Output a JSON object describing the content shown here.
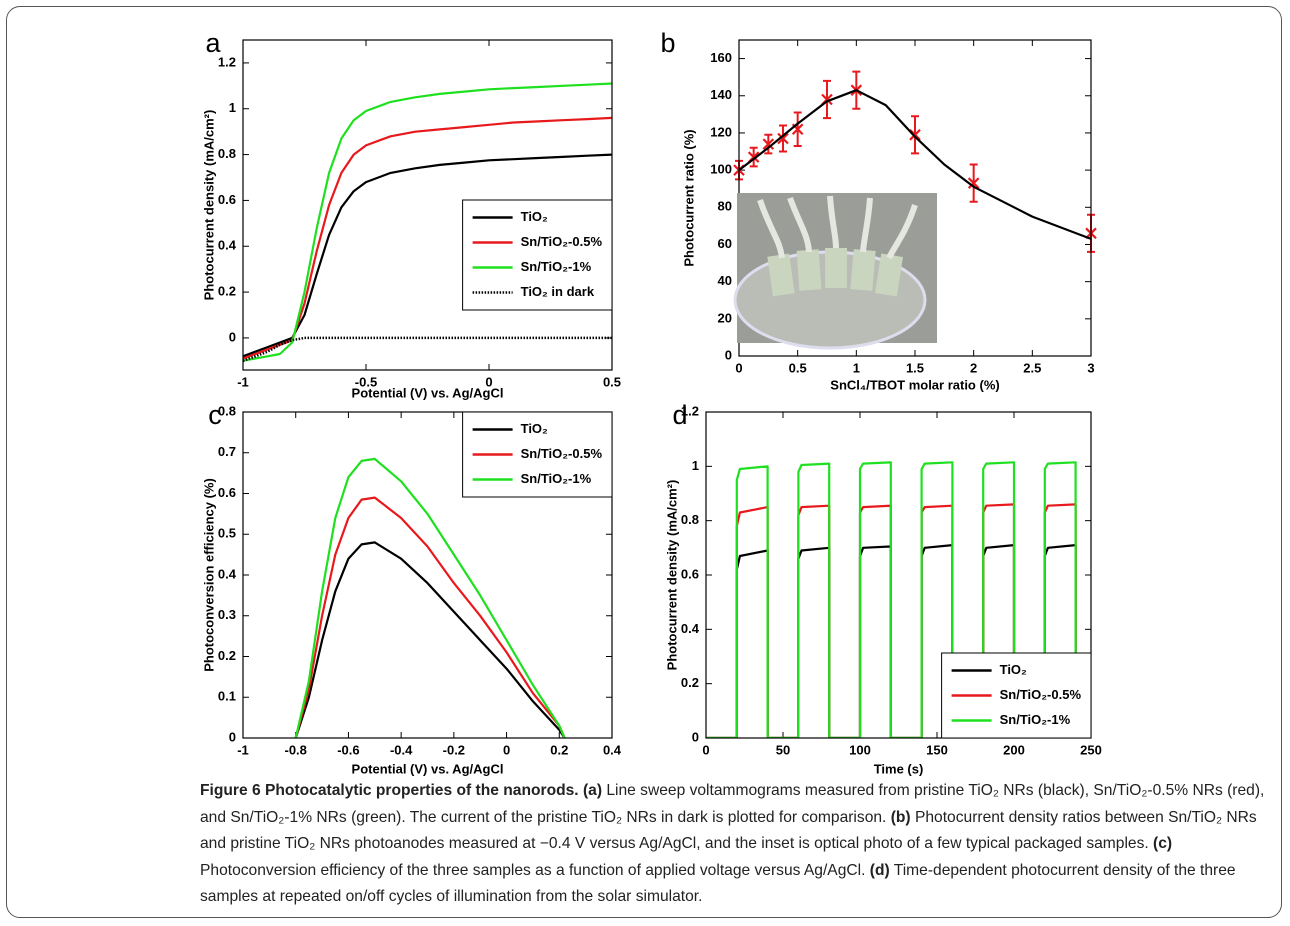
{
  "chart_data": [
    {
      "type": "line",
      "panel": "a",
      "xlabel": "Potential (V) vs. Ag/AgCl",
      "ylabel": "Photocurrent density (mA/cm²)",
      "xlim": [
        -1,
        0.5
      ],
      "xticks": [
        -1,
        -0.5,
        0,
        0.5
      ],
      "ylim": [
        -0.14,
        1.3
      ],
      "yticks": [
        0,
        0.2,
        0.4,
        0.6,
        0.8,
        1,
        1.2
      ],
      "legend": "lower right",
      "x": [
        -1,
        -0.95,
        -0.9,
        -0.85,
        -0.8,
        -0.75,
        -0.7,
        -0.65,
        -0.6,
        -0.55,
        -0.5,
        -0.4,
        -0.3,
        -0.2,
        -0.1,
        0,
        0.1,
        0.2,
        0.3,
        0.4,
        0.5
      ],
      "series": [
        {
          "name": "TiO₂",
          "color": "#000000",
          "values": [
            -0.08,
            -0.06,
            -0.04,
            -0.02,
            0.0,
            0.1,
            0.28,
            0.45,
            0.57,
            0.64,
            0.68,
            0.72,
            0.74,
            0.755,
            0.765,
            0.775,
            0.78,
            0.785,
            0.79,
            0.795,
            0.8
          ]
        },
        {
          "name": "Sn/TiO₂-0.5%",
          "color": "#e8191c",
          "values": [
            -0.09,
            -0.07,
            -0.05,
            -0.03,
            -0.01,
            0.15,
            0.38,
            0.58,
            0.72,
            0.8,
            0.84,
            0.88,
            0.9,
            0.91,
            0.92,
            0.93,
            0.94,
            0.945,
            0.95,
            0.955,
            0.96
          ]
        },
        {
          "name": "Sn/TiO₂-1%",
          "color": "#1ee01e",
          "values": [
            -0.1,
            -0.09,
            -0.08,
            -0.07,
            -0.02,
            0.2,
            0.48,
            0.72,
            0.87,
            0.95,
            0.99,
            1.03,
            1.05,
            1.065,
            1.075,
            1.085,
            1.09,
            1.095,
            1.1,
            1.105,
            1.11
          ]
        },
        {
          "name": "TiO₂ in dark",
          "color": "#000000",
          "style": "dotted",
          "values": [
            -0.1,
            -0.08,
            -0.06,
            -0.03,
            -0.01,
            0,
            0,
            0,
            0,
            0,
            0,
            0,
            0,
            0,
            0,
            0,
            0,
            0,
            0,
            0,
            0
          ]
        }
      ]
    },
    {
      "type": "line",
      "panel": "b",
      "xlabel": "SnCl₄/TBOT molar ratio (%)",
      "ylabel": "Photocurrent ratio (%)",
      "xlim": [
        0,
        3
      ],
      "xticks": [
        0,
        0.5,
        1,
        1.5,
        2,
        2.5,
        3
      ],
      "ylim": [
        0,
        170
      ],
      "yticks": [
        0,
        20,
        40,
        60,
        80,
        100,
        120,
        140,
        160
      ],
      "series": [
        {
          "color": "#e8191c",
          "marker": "x",
          "line": false,
          "x": [
            0,
            0.125,
            0.25,
            0.375,
            0.5,
            0.75,
            1,
            1.5,
            2,
            3
          ],
          "values": [
            100,
            107,
            114,
            117,
            122,
            138,
            143,
            119,
            93,
            66
          ],
          "error": [
            5,
            5,
            5,
            7,
            9,
            10,
            10,
            10,
            10,
            10
          ]
        },
        {
          "color": "#000000",
          "x": [
            0,
            0.25,
            0.5,
            0.75,
            1,
            1.25,
            1.5,
            1.75,
            2,
            2.5,
            3
          ],
          "values": [
            100,
            112,
            125,
            137,
            143,
            135,
            118,
            103,
            91,
            75,
            63
          ]
        }
      ]
    },
    {
      "type": "line",
      "panel": "c",
      "xlabel": "Potential (V) vs. Ag/AgCl",
      "ylabel": "Photoconversion efficiency (%)",
      "xlim": [
        -1,
        0.4
      ],
      "xticks": [
        -1,
        -0.8,
        -0.6,
        -0.4,
        -0.2,
        0,
        0.2,
        0.4
      ],
      "ylim": [
        0,
        0.8
      ],
      "yticks": [
        0,
        0.1,
        0.2,
        0.3,
        0.4,
        0.5,
        0.6,
        0.7,
        0.8
      ],
      "legend": "upper right",
      "x": [
        -0.8,
        -0.75,
        -0.7,
        -0.65,
        -0.6,
        -0.55,
        -0.5,
        -0.4,
        -0.3,
        -0.2,
        -0.1,
        0,
        0.1,
        0.2,
        0.22
      ],
      "series": [
        {
          "name": "TiO₂",
          "color": "#000000",
          "values": [
            0,
            0.1,
            0.24,
            0.36,
            0.44,
            0.475,
            0.48,
            0.44,
            0.38,
            0.31,
            0.24,
            0.17,
            0.09,
            0.02,
            0
          ]
        },
        {
          "name": "Sn/TiO₂-0.5%",
          "color": "#e8191c",
          "values": [
            0,
            0.12,
            0.3,
            0.45,
            0.54,
            0.585,
            0.59,
            0.54,
            0.47,
            0.38,
            0.3,
            0.21,
            0.11,
            0.03,
            0
          ]
        },
        {
          "name": "Sn/TiO₂-1%",
          "color": "#1ee01e",
          "values": [
            0,
            0.14,
            0.36,
            0.54,
            0.64,
            0.68,
            0.685,
            0.63,
            0.55,
            0.45,
            0.35,
            0.24,
            0.13,
            0.03,
            0
          ]
        }
      ]
    },
    {
      "type": "line",
      "panel": "d",
      "xlabel": "Time (s)",
      "ylabel": "Photocurrent density (mA/cm²)",
      "xlim": [
        0,
        250
      ],
      "xticks": [
        0,
        50,
        100,
        150,
        200,
        250
      ],
      "ylim": [
        0,
        1.2
      ],
      "yticks": [
        0,
        0.2,
        0.4,
        0.6,
        0.8,
        1,
        1.2
      ],
      "legend": "lower right",
      "x": [
        0,
        20,
        20,
        22,
        40,
        40,
        60,
        60,
        62,
        80,
        80,
        100,
        100,
        102,
        120,
        120,
        140,
        140,
        142,
        160,
        160,
        180,
        180,
        182,
        200,
        200,
        220,
        220,
        222,
        240,
        240,
        250
      ],
      "series": [
        {
          "name": "TiO₂",
          "color": "#000000",
          "values": [
            0,
            0,
            0.62,
            0.67,
            0.69,
            0,
            0,
            0.66,
            0.69,
            0.7,
            0,
            0,
            0.67,
            0.7,
            0.705,
            0,
            0,
            0.67,
            0.7,
            0.71,
            0,
            0,
            0.67,
            0.7,
            0.71,
            0,
            0,
            0.67,
            0.7,
            0.71,
            0,
            0
          ]
        },
        {
          "name": "Sn/TiO₂-0.5%",
          "color": "#e8191c",
          "values": [
            0,
            0,
            0.78,
            0.83,
            0.85,
            0,
            0,
            0.82,
            0.85,
            0.855,
            0,
            0,
            0.83,
            0.85,
            0.855,
            0,
            0,
            0.83,
            0.85,
            0.855,
            0,
            0,
            0.83,
            0.855,
            0.86,
            0,
            0,
            0.83,
            0.855,
            0.86,
            0,
            0
          ]
        },
        {
          "name": "Sn/TiO₂-1%",
          "color": "#1ee01e",
          "values": [
            0,
            0,
            0.95,
            0.99,
            1.0,
            0,
            0,
            0.98,
            1.005,
            1.01,
            0,
            0,
            0.99,
            1.01,
            1.015,
            0,
            0,
            0.99,
            1.01,
            1.015,
            0,
            0,
            0.99,
            1.01,
            1.015,
            0,
            0,
            0.99,
            1.01,
            1.015,
            0,
            0
          ]
        }
      ]
    }
  ],
  "caption": [
    {
      "text": "Figure 6 Photocatalytic properties of the nanorods. (a)",
      "bold": true
    },
    {
      "text": " Line sweep voltammograms measured from pristine TiO₂ NRs (black), Sn/TiO₂-0.5% NRs (red), and Sn/TiO₂-1% NRs (green). The current of the pristine TiO₂ NRs in dark is plotted for comparison. ",
      "bold": false
    },
    {
      "text": "(b)",
      "bold": true
    },
    {
      "text": " Photocurrent density ratios between Sn/TiO₂ NRs and pristine TiO₂ NRs photoanodes measured at −0.4 V versus Ag/AgCl, and the inset is optical photo of a few typical packaged samples. ",
      "bold": false
    },
    {
      "text": "(c)",
      "bold": true
    },
    {
      "text": " Photoconversion efficiency of the three samples as a function of applied voltage versus Ag/AgCl. ",
      "bold": false
    },
    {
      "text": "(d)",
      "bold": true
    },
    {
      "text": " Time-dependent photocurrent density of the three samples at repeated on/off cycles of illumination from the solar simulator.",
      "bold": false
    }
  ]
}
